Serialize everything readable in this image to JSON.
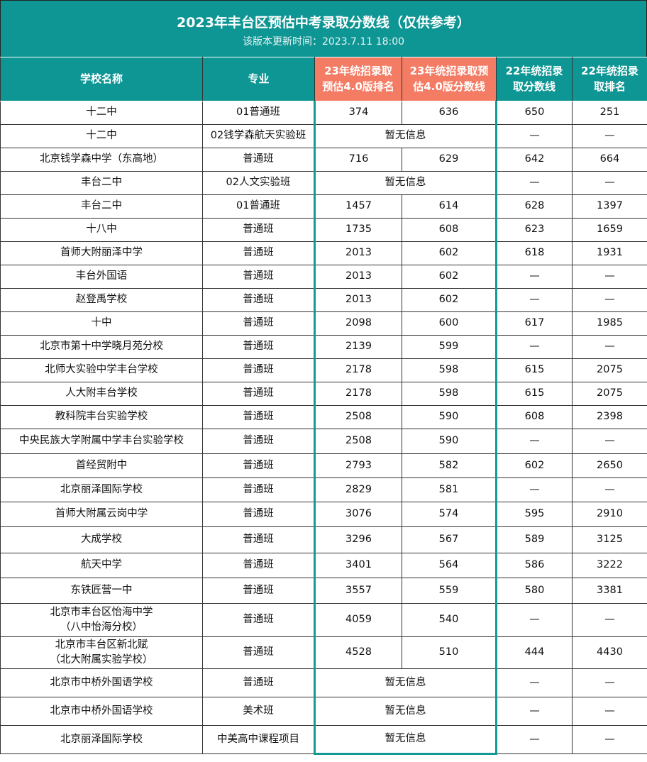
{
  "title": "2023年丰台区预估中考录取分数线（仅供参考）",
  "subtitle": "该版本更新时间：2023.7.11 18:00",
  "colors": {
    "header": "#0e9694",
    "highlight": "#f47c64"
  },
  "headers": [
    "学校名称",
    "专业",
    "23年统招录取预估4.0版排名",
    "23年统招录取预估4.0版分数线",
    "22年统招录取分数线",
    "22年统招录取排名"
  ],
  "rows": [
    {
      "school": "十二中",
      "major": "01普通班",
      "rank23": "374",
      "score23": "636",
      "score22": "650",
      "rank22": "251"
    },
    {
      "school": "十二中",
      "major": "02钱学森航天实验班",
      "info": "暂无信息",
      "score22": "—",
      "rank22": "—"
    },
    {
      "school": "北京钱学森中学（东高地）",
      "major": "普通班",
      "rank23": "716",
      "score23": "629",
      "score22": "642",
      "rank22": "664"
    },
    {
      "school": "丰台二中",
      "major": "02人文实验班",
      "info": "暂无信息",
      "score22": "—",
      "rank22": "—"
    },
    {
      "school": "丰台二中",
      "major": "01普通班",
      "rank23": "1457",
      "score23": "614",
      "score22": "628",
      "rank22": "1397"
    },
    {
      "school": "十八中",
      "major": "普通班",
      "rank23": "1735",
      "score23": "608",
      "score22": "623",
      "rank22": "1659"
    },
    {
      "school": "首师大附丽泽中学",
      "major": "普通班",
      "rank23": "2013",
      "score23": "602",
      "score22": "618",
      "rank22": "1931"
    },
    {
      "school": "丰台外国语",
      "major": "普通班",
      "rank23": "2013",
      "score23": "602",
      "score22": "—",
      "rank22": "—"
    },
    {
      "school": "赵登禹学校",
      "major": "普通班",
      "rank23": "2013",
      "score23": "602",
      "score22": "—",
      "rank22": "—"
    },
    {
      "school": "十中",
      "major": "普通班",
      "rank23": "2098",
      "score23": "600",
      "score22": "617",
      "rank22": "1985"
    },
    {
      "school": "北京市第十中学晓月苑分校",
      "major": "普通班",
      "rank23": "2139",
      "score23": "599",
      "score22": "—",
      "rank22": "—"
    },
    {
      "school": "北师大实验中学丰台学校",
      "major": "普通班",
      "rank23": "2178",
      "score23": "598",
      "score22": "615",
      "rank22": "2075"
    },
    {
      "school": "人大附丰台学校",
      "major": "普通班",
      "rank23": "2178",
      "score23": "598",
      "score22": "615",
      "rank22": "2075"
    },
    {
      "school": "教科院丰台实验学校",
      "major": "普通班",
      "rank23": "2508",
      "score23": "590",
      "score22": "608",
      "rank22": "2398"
    },
    {
      "school": "中央民族大学附属中学丰台实验学校",
      "major": "普通班",
      "rank23": "2508",
      "score23": "590",
      "score22": "—",
      "rank22": "—"
    },
    {
      "school": "首经贸附中",
      "major": "普通班",
      "rank23": "2793",
      "score23": "582",
      "score22": "602",
      "rank22": "2650"
    },
    {
      "school": "北京丽泽国际学校",
      "major": "普通班",
      "rank23": "2829",
      "score23": "581",
      "score22": "—",
      "rank22": "—"
    },
    {
      "school": "首师大附属云岗中学",
      "major": "普通班",
      "rank23": "3076",
      "score23": "574",
      "score22": "595",
      "rank22": "2910"
    },
    {
      "school": "大成学校",
      "major": "普通班",
      "rank23": "3296",
      "score23": "567",
      "score22": "589",
      "rank22": "3125"
    },
    {
      "school": "航天中学",
      "major": "普通班",
      "rank23": "3401",
      "score23": "564",
      "score22": "586",
      "rank22": "3222"
    },
    {
      "school": "东铁匠营一中",
      "major": "普通班",
      "rank23": "3557",
      "score23": "559",
      "score22": "580",
      "rank22": "3381"
    },
    {
      "school": "北京市丰台区怡海中学\n（八中怡海分校）",
      "major": "普通班",
      "rank23": "4059",
      "score23": "540",
      "score22": "—",
      "rank22": "—"
    },
    {
      "school": "北京市丰台区新北赋\n（北大附属实验学校）",
      "major": "普通班",
      "rank23": "4528",
      "score23": "510",
      "score22": "444",
      "rank22": "4430"
    },
    {
      "school": "北京市中桥外国语学校",
      "major": "普通班",
      "info": "暂无信息",
      "score22": "—",
      "rank22": "—"
    },
    {
      "school": "北京市中桥外国语学校",
      "major": "美术班",
      "info": "暂无信息",
      "score22": "—",
      "rank22": "—"
    },
    {
      "school": "北京丽泽国际学校",
      "major": "中美高中课程项目",
      "info": "暂无信息",
      "score22": "—",
      "rank22": "—"
    }
  ]
}
